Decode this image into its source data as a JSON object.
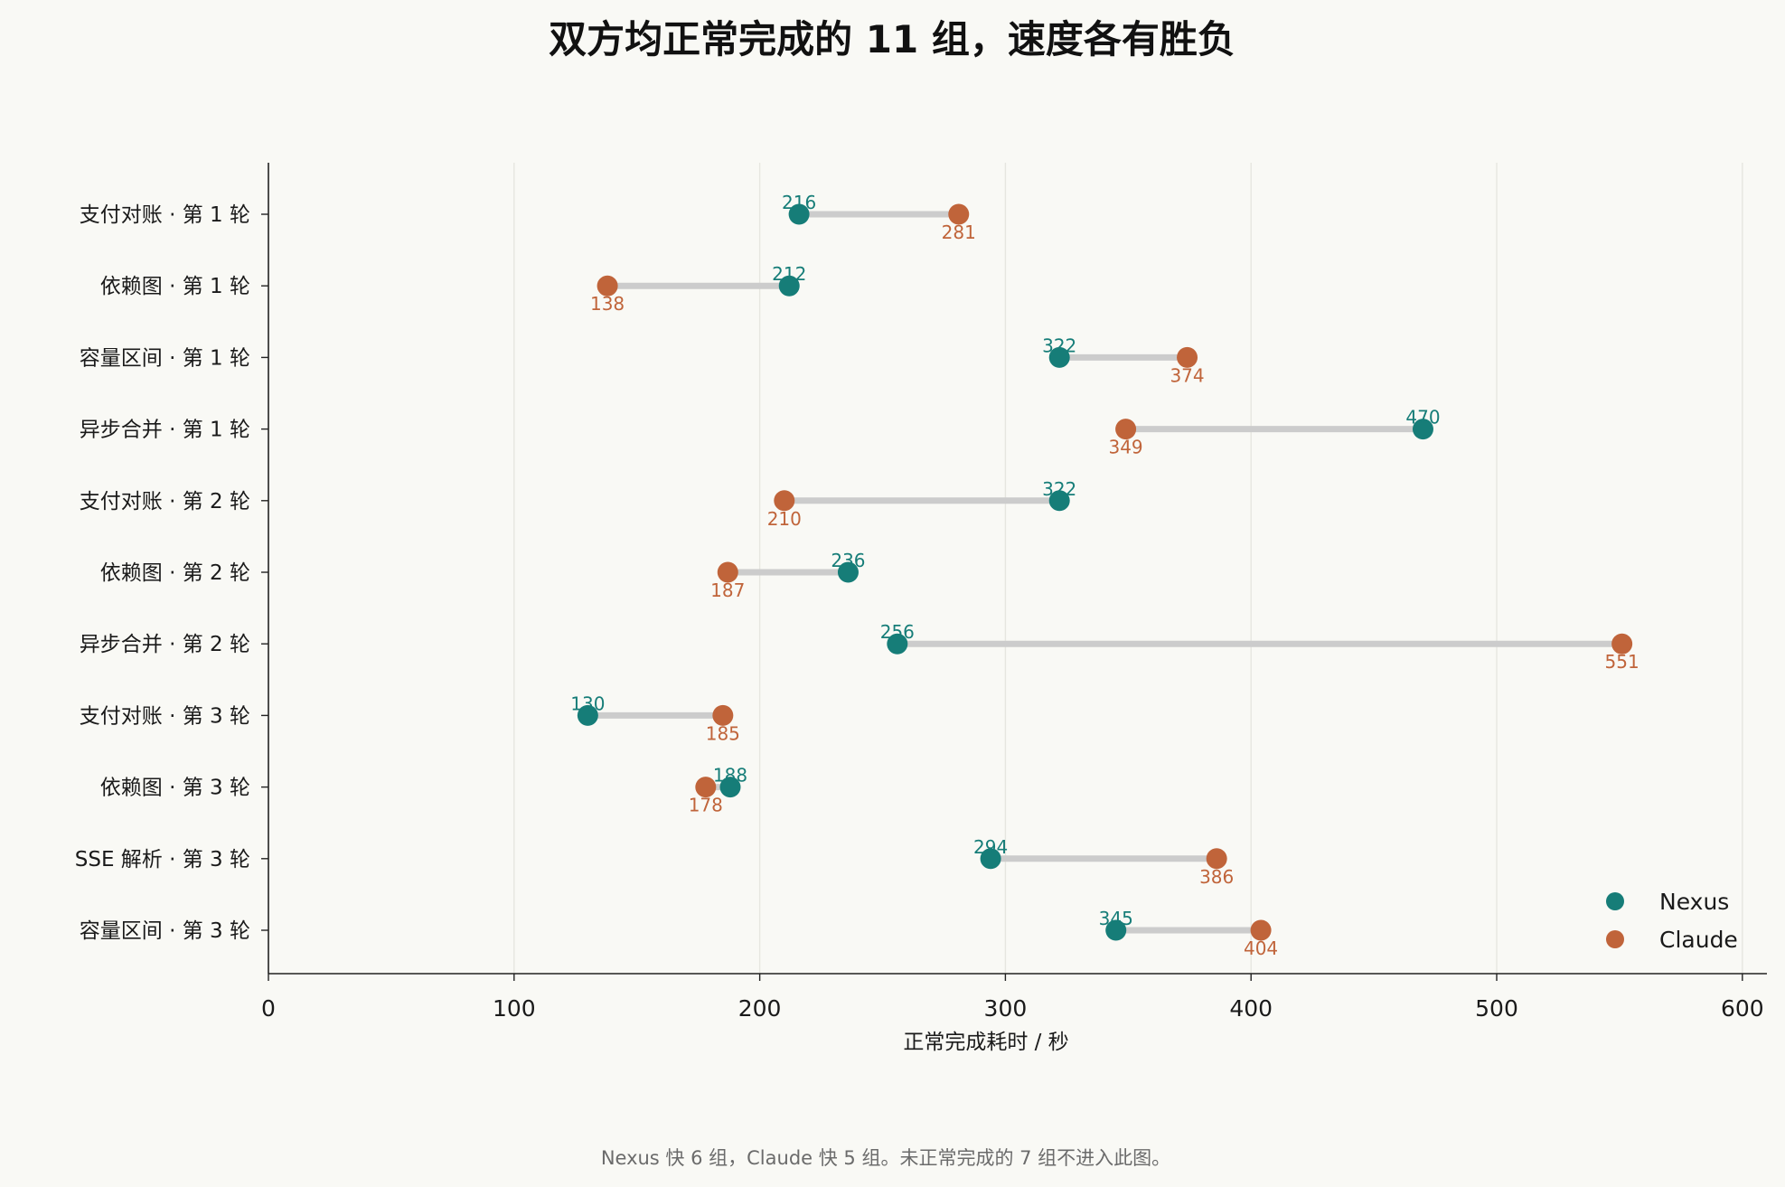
{
  "chart_data": {
    "type": "dumbbell",
    "title": "双方均正常完成的 11 组，速度各有胜负",
    "xlabel": "正常完成耗时 / 秒",
    "ylabel": "",
    "xlim": [
      0,
      610
    ],
    "xticks": [
      0,
      100,
      200,
      300,
      400,
      500,
      600
    ],
    "grid": "vertical",
    "legend_position": "bottom-right",
    "categories": [
      "支付对账 · 第 1 轮",
      "依赖图 · 第 1 轮",
      "容量区间 · 第 1 轮",
      "异步合并 · 第 1 轮",
      "支付对账 · 第 2 轮",
      "依赖图 · 第 2 轮",
      "异步合并 · 第 2 轮",
      "支付对账 · 第 3 轮",
      "依赖图 · 第 3 轮",
      "SSE 解析 · 第 3 轮",
      "容量区间 · 第 3 轮"
    ],
    "series": [
      {
        "name": "Nexus",
        "color": "#167d78",
        "values": [
          216,
          212,
          322,
          470,
          322,
          236,
          256,
          130,
          188,
          294,
          345
        ]
      },
      {
        "name": "Claude",
        "color": "#c0643a",
        "values": [
          281,
          138,
          374,
          349,
          210,
          187,
          551,
          185,
          178,
          386,
          404
        ]
      }
    ],
    "connector_color": "#cccccc",
    "footnote": "Nexus 快 6 组，Claude 快 5 组。未正常完成的 7 组不进入此图。"
  }
}
